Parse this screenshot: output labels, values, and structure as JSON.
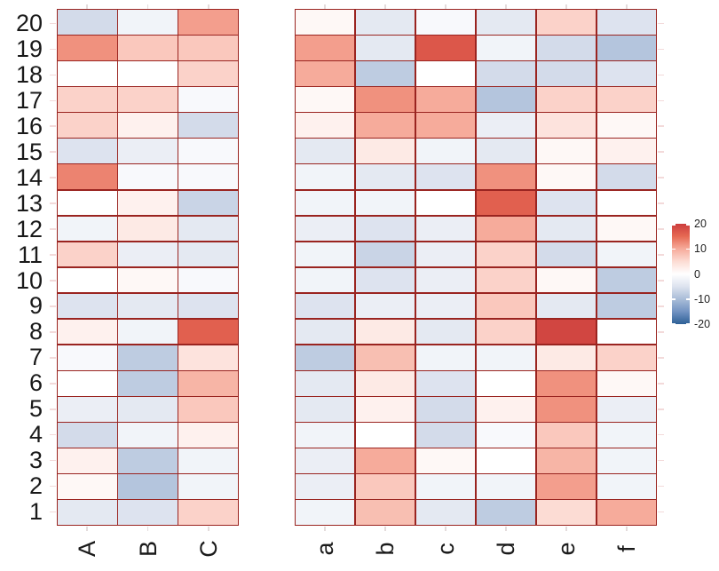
{
  "chart_data": [
    {
      "type": "heatmap",
      "panel": "left",
      "x_labels": [
        "A",
        "B",
        "C"
      ],
      "y_labels": [
        "20",
        "19",
        "18",
        "17",
        "16",
        "15",
        "14",
        "13",
        "12",
        "11",
        "10",
        "9",
        "8",
        "7",
        "6",
        "5",
        "4",
        "3",
        "2",
        "1"
      ],
      "zlim": [
        -20,
        20
      ],
      "values": [
        [
          -6,
          -2,
          11
        ],
        [
          12,
          7,
          7
        ],
        [
          0,
          0,
          6
        ],
        [
          6,
          6,
          -1
        ],
        [
          6,
          2,
          -6
        ],
        [
          -5,
          -3,
          -1
        ],
        [
          13,
          -1,
          -1
        ],
        [
          0,
          2,
          -7
        ],
        [
          -2,
          3,
          -4
        ],
        [
          6,
          -3,
          -4
        ],
        [
          0,
          1,
          -1
        ],
        [
          -5,
          -4,
          -5
        ],
        [
          2,
          -2,
          16
        ],
        [
          -1,
          -8,
          4
        ],
        [
          0,
          -8,
          9
        ],
        [
          -3,
          -4,
          7
        ],
        [
          -6,
          -2,
          2
        ],
        [
          2,
          -8,
          -2
        ],
        [
          1,
          -9,
          -2
        ],
        [
          -4,
          -5,
          6
        ]
      ]
    },
    {
      "type": "heatmap",
      "panel": "right",
      "x_labels": [
        "a",
        "b",
        "c",
        "d",
        "e",
        "f"
      ],
      "y_labels": [
        "20",
        "19",
        "18",
        "17",
        "16",
        "15",
        "14",
        "13",
        "12",
        "11",
        "10",
        "9",
        "8",
        "7",
        "6",
        "5",
        "4",
        "3",
        "2",
        "1"
      ],
      "zlim": [
        -20,
        20
      ],
      "values": [
        [
          1,
          -4,
          -1,
          -4,
          6,
          -5
        ],
        [
          11,
          -4,
          17,
          -2,
          -6,
          -9
        ],
        [
          10,
          -8,
          0,
          -6,
          -6,
          -5
        ],
        [
          1,
          12,
          10,
          -9,
          6,
          6
        ],
        [
          2,
          10,
          10,
          -3,
          4,
          1
        ],
        [
          -4,
          3,
          -2,
          -4,
          1,
          2
        ],
        [
          -2,
          -4,
          -5,
          12,
          1,
          -6
        ],
        [
          -2,
          -2,
          0,
          16,
          -5,
          0
        ],
        [
          -3,
          -5,
          -3,
          10,
          -4,
          1
        ],
        [
          -2,
          -7,
          -3,
          6,
          -6,
          -2
        ],
        [
          -2,
          -5,
          -3,
          6,
          1,
          -8
        ],
        [
          -5,
          -3,
          -3,
          7,
          -4,
          -8
        ],
        [
          -4,
          3,
          -4,
          6,
          19,
          0
        ],
        [
          -8,
          8,
          -2,
          -2,
          3,
          6
        ],
        [
          -4,
          3,
          -5,
          0,
          12,
          1
        ],
        [
          -4,
          2,
          -6,
          2,
          12,
          -3
        ],
        [
          -2,
          0,
          -6,
          -1,
          7,
          -2
        ],
        [
          -3,
          10,
          1,
          0,
          9,
          -2
        ],
        [
          -3,
          7,
          -2,
          -2,
          11,
          -2
        ],
        [
          -2,
          8,
          -4,
          -8,
          5,
          10
        ]
      ]
    }
  ],
  "legend": {
    "tick_labels": [
      "20",
      "10",
      "0",
      "-10",
      "-20"
    ],
    "tick_values": [
      20,
      10,
      0,
      -10,
      -20
    ],
    "min": -20,
    "max": 20
  },
  "colors": {
    "cell_border": "#9a2420",
    "positive_anchors": [
      "#ffffff",
      "#fcdcd4",
      "#f6ab9b",
      "#e66953",
      "#cc3d3d"
    ],
    "negative_anchors": [
      "#ffffff",
      "#dde3ef",
      "#aabdd8",
      "#7293c2",
      "#2e6096"
    ],
    "label_color": "#1a1a1a",
    "side_tick_color": "#f3dada",
    "axis_tick_color": "#e4dcdc"
  }
}
